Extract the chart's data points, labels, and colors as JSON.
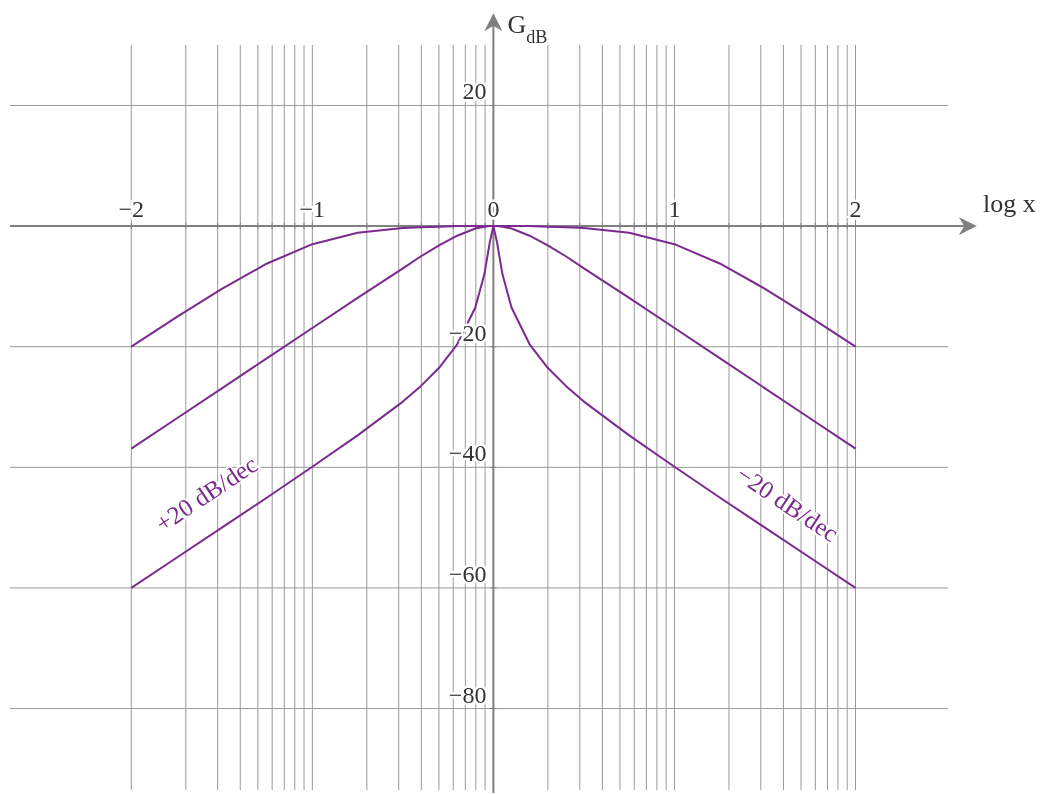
{
  "chart_data": {
    "type": "line",
    "xlabel": "log x",
    "ylabel": "G$_{dB}$",
    "x": [
      -2,
      -1.75,
      -1.5,
      -1.25,
      -1,
      -0.75,
      -0.5,
      -0.4,
      -0.3,
      -0.2,
      -0.1,
      -0.05,
      -0.02,
      0,
      0.02,
      0.05,
      0.1,
      0.2,
      0.3,
      0.4,
      0.5,
      0.75,
      1,
      1.25,
      1.5,
      1.75,
      2
    ],
    "series": [
      {
        "color": "#7b2a8e",
        "values": [
          -20,
          -15.1,
          -10.4,
          -6.2,
          -3,
          -1.1,
          -0.3,
          -0.2,
          -0.1,
          0,
          0,
          0,
          0,
          0,
          0,
          0,
          0,
          0,
          -0.1,
          -0.2,
          -0.3,
          -1.1,
          -3,
          -6.2,
          -10.4,
          -15.1,
          -20
        ]
      },
      {
        "color": "#7b2a8e",
        "values": [
          -36.9,
          -31.9,
          -26.9,
          -21.9,
          -16.9,
          -11.9,
          -7,
          -5,
          -3.2,
          -1.6,
          -0.4,
          -0.1,
          0,
          0,
          0,
          -0.1,
          -0.4,
          -1.6,
          -3.2,
          -5,
          -7,
          -11.9,
          -16.9,
          -21.9,
          -26.9,
          -31.9,
          -36.9
        ]
      },
      {
        "color": "#7b2a8e",
        "values": [
          -60,
          -55,
          -50,
          -45,
          -39.9,
          -34.7,
          -29.1,
          -26.5,
          -23.5,
          -19.6,
          -13.5,
          -8,
          -2.7,
          0,
          -2.7,
          -8,
          -13.5,
          -19.6,
          -23.5,
          -26.5,
          -29.1,
          -34.7,
          -39.9,
          -45,
          -50,
          -55,
          -60
        ]
      }
    ],
    "xlim": [
      -2.67,
      2.66
    ],
    "ylim": [
      -94,
      35
    ],
    "xticks": [
      {
        "value": -2,
        "label": "−2"
      },
      {
        "value": -1.699,
        "label": null
      },
      {
        "value": -1.523,
        "label": null
      },
      {
        "value": -1.398,
        "label": null
      },
      {
        "value": -1.301,
        "label": null
      },
      {
        "value": -1.222,
        "label": null
      },
      {
        "value": -1.155,
        "label": null
      },
      {
        "value": -1.097,
        "label": null
      },
      {
        "value": -1.046,
        "label": null
      },
      {
        "value": -1,
        "label": "−1"
      },
      {
        "value": -0.699,
        "label": null
      },
      {
        "value": -0.523,
        "label": null
      },
      {
        "value": -0.398,
        "label": null
      },
      {
        "value": -0.301,
        "label": null
      },
      {
        "value": -0.222,
        "label": null
      },
      {
        "value": -0.155,
        "label": null
      },
      {
        "value": -0.097,
        "label": null
      },
      {
        "value": -0.046,
        "label": null
      },
      0,
      {
        "value": 0.301,
        "label": null
      },
      {
        "value": 0.477,
        "label": null
      },
      {
        "value": 0.602,
        "label": null
      },
      {
        "value": 0.699,
        "label": null
      },
      {
        "value": 0.778,
        "label": null
      },
      {
        "value": 0.845,
        "label": null
      },
      {
        "value": 0.903,
        "label": null
      },
      {
        "value": 0.954,
        "label": null
      },
      1,
      {
        "value": 1.301,
        "label": null
      },
      {
        "value": 1.477,
        "label": null
      },
      {
        "value": 1.602,
        "label": null
      },
      {
        "value": 1.699,
        "label": null
      },
      {
        "value": 1.778,
        "label": null
      },
      {
        "value": 1.845,
        "label": null
      },
      {
        "value": 1.903,
        "label": null
      },
      {
        "value": 1.954,
        "label": null
      },
      2
    ],
    "yticks": [
      20,
      {
        "value": 0,
        "label": null
      },
      {
        "value": -20,
        "label": "−20"
      },
      {
        "value": -40,
        "label": "−40"
      },
      {
        "value": -60,
        "label": "−60"
      },
      {
        "value": -80,
        "label": "−80"
      }
    ],
    "grid": true,
    "marker": "none",
    "line_style": "solid",
    "annotations": [
      "+20 dB/dec",
      "−20 dB/dec"
    ]
  }
}
